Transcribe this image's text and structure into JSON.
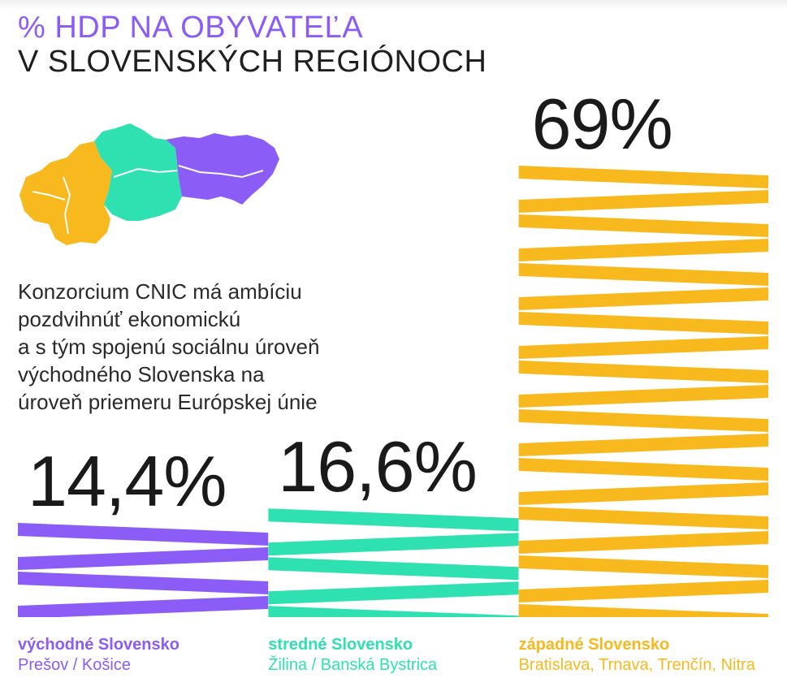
{
  "header": {
    "title_highlight": "% HDP NA OBYVATEĽA",
    "title_rest": "V SLOVENSKÝCH REGIÓNOCH"
  },
  "description": {
    "lines": [
      "Konzorcium CNIC má ambíciu",
      "pozdvihnúť ekonomickú",
      "a s tým spojenú sociálnu úroveň",
      "východného Slovenska na",
      "úroveň priemeru Európskej únie"
    ]
  },
  "colors": {
    "purple": "#8b5cf6",
    "green": "#2fe0b0",
    "yellow": "#f7b91e"
  },
  "chart_data": {
    "type": "bar",
    "categories": [
      "východné Slovensko",
      "stredné Slovensko",
      "západné Slovensko"
    ],
    "sublabels": [
      "Prešov / Košice",
      "Žilina / Banská Bystrica",
      "Bratislava, Trnava, Trenčín, Nitra"
    ],
    "values": [
      14.4,
      16.6,
      69
    ],
    "value_labels": [
      "14,4%",
      "16,6%",
      "69%"
    ],
    "colors": [
      "#8b5cf6",
      "#2fe0b0",
      "#f7b91e"
    ],
    "title": "% HDP NA OBYVATEĽA V SLOVENSKÝCH REGIÓNOCH",
    "ylabel": "",
    "xlabel": "",
    "ylim": [
      0,
      69
    ],
    "grid": false,
    "legend": "none"
  }
}
